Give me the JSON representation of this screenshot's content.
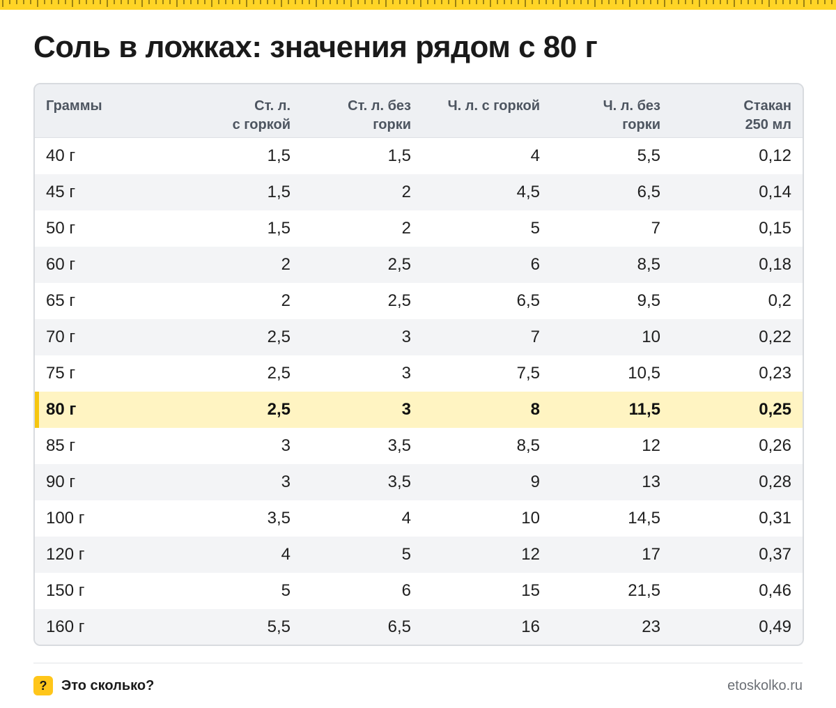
{
  "title": "Соль в ложках: значения рядом с 80 г",
  "table": {
    "headers": [
      "Граммы",
      "Ст. л.\nс горкой",
      "Ст. л. без\nгорки",
      "Ч. л. с горкой",
      "Ч. л. без\nгорки",
      "Стакан\n250 мл"
    ],
    "highlight_row": "80 г",
    "rows": [
      [
        "40 г",
        "1,5",
        "1,5",
        "4",
        "5,5",
        "0,12"
      ],
      [
        "45 г",
        "1,5",
        "2",
        "4,5",
        "6,5",
        "0,14"
      ],
      [
        "50 г",
        "1,5",
        "2",
        "5",
        "7",
        "0,15"
      ],
      [
        "60 г",
        "2",
        "2,5",
        "6",
        "8,5",
        "0,18"
      ],
      [
        "65 г",
        "2",
        "2,5",
        "6,5",
        "9,5",
        "0,2"
      ],
      [
        "70 г",
        "2,5",
        "3",
        "7",
        "10",
        "0,22"
      ],
      [
        "75 г",
        "2,5",
        "3",
        "7,5",
        "10,5",
        "0,23"
      ],
      [
        "80 г",
        "2,5",
        "3",
        "8",
        "11,5",
        "0,25"
      ],
      [
        "85 г",
        "3",
        "3,5",
        "8,5",
        "12",
        "0,26"
      ],
      [
        "90 г",
        "3",
        "3,5",
        "9",
        "13",
        "0,28"
      ],
      [
        "100 г",
        "3,5",
        "4",
        "10",
        "14,5",
        "0,31"
      ],
      [
        "120 г",
        "4",
        "5",
        "12",
        "17",
        "0,37"
      ],
      [
        "150 г",
        "5",
        "6",
        "15",
        "21,5",
        "0,46"
      ],
      [
        "160 г",
        "5,5",
        "6,5",
        "16",
        "23",
        "0,49"
      ]
    ]
  },
  "footer": {
    "badge_icon": "question-mark-icon",
    "badge_text": "?",
    "brand": "Это сколько?",
    "site": "etoskolko.ru"
  },
  "colors": {
    "accent": "#ffd426",
    "highlight_bg": "#fff4c2",
    "highlight_bar": "#f6c60f"
  }
}
